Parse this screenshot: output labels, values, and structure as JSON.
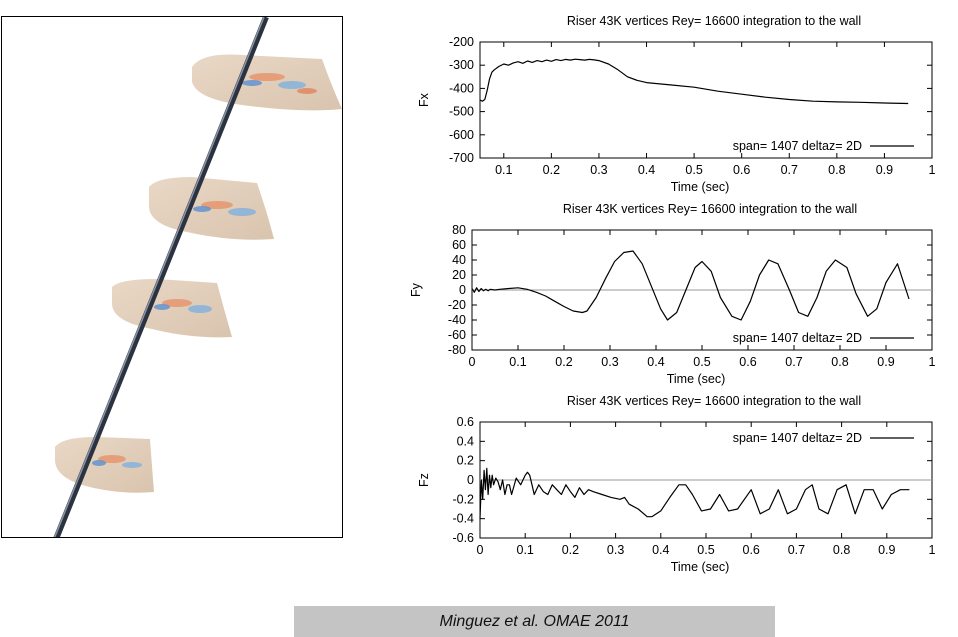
{
  "caption": "Minguez et al. OMAE 2011",
  "colors": {
    "curve": "#000000",
    "grid": "#999999",
    "caption_bg": "#c4c4c4"
  },
  "simulation_image": {
    "description_icon": "riser-vorticity-slices-image"
  },
  "chart_data": [
    {
      "type": "line",
      "title": "Riser 43K vertices Rey= 16600 integration to the wall",
      "xlabel": "Time (sec)",
      "ylabel": "Fx",
      "xlim": [
        0.05,
        1
      ],
      "ylim": [
        -700,
        -200
      ],
      "xticks": [
        "0.1",
        "0.2",
        "0.3",
        "0.4",
        "0.5",
        "0.6",
        "0.7",
        "0.8",
        "0.9",
        "1"
      ],
      "xtick_values": [
        0.1,
        0.2,
        0.3,
        0.4,
        0.5,
        0.6,
        0.7,
        0.8,
        0.9,
        1
      ],
      "yticks": [
        "-200",
        "-300",
        "-400",
        "-500",
        "-600",
        "-700"
      ],
      "ytick_values": [
        -200,
        -300,
        -400,
        -500,
        -600,
        -700
      ],
      "grid": true,
      "legend_position": "bottom-right",
      "series": [
        {
          "name": "span= 1407 deltaz= 2D",
          "x": [
            0.05,
            0.055,
            0.06,
            0.065,
            0.07,
            0.075,
            0.08,
            0.09,
            0.1,
            0.11,
            0.12,
            0.13,
            0.14,
            0.15,
            0.16,
            0.17,
            0.18,
            0.19,
            0.2,
            0.21,
            0.22,
            0.23,
            0.24,
            0.25,
            0.26,
            0.27,
            0.28,
            0.29,
            0.3,
            0.32,
            0.34,
            0.36,
            0.38,
            0.4,
            0.45,
            0.5,
            0.55,
            0.6,
            0.65,
            0.7,
            0.75,
            0.8,
            0.85,
            0.9,
            0.95
          ],
          "y": [
            -450,
            -455,
            -448,
            -410,
            -360,
            -330,
            -320,
            -305,
            -295,
            -300,
            -290,
            -285,
            -292,
            -282,
            -288,
            -280,
            -285,
            -278,
            -283,
            -276,
            -280,
            -275,
            -278,
            -274,
            -276,
            -278,
            -275,
            -277,
            -280,
            -295,
            -320,
            -350,
            -365,
            -375,
            -385,
            -395,
            -412,
            -425,
            -438,
            -448,
            -455,
            -458,
            -460,
            -463,
            -465
          ]
        }
      ]
    },
    {
      "type": "line",
      "title": "Riser 43K vertices Rey= 16600 integration to the wall",
      "xlabel": "Time (sec)",
      "ylabel": "Fy",
      "xlim": [
        0,
        1
      ],
      "ylim": [
        -80,
        80
      ],
      "xticks": [
        "0",
        "0.1",
        "0.2",
        "0.3",
        "0.4",
        "0.5",
        "0.6",
        "0.7",
        "0.8",
        "0.9",
        "1"
      ],
      "xtick_values": [
        0,
        0.1,
        0.2,
        0.3,
        0.4,
        0.5,
        0.6,
        0.7,
        0.8,
        0.9,
        1
      ],
      "yticks": [
        "80",
        "60",
        "40",
        "20",
        "0",
        "-20",
        "-40",
        "-60",
        "-80"
      ],
      "ytick_values": [
        80,
        60,
        40,
        20,
        0,
        -20,
        -40,
        -60,
        -80
      ],
      "grid": true,
      "zero_line": true,
      "legend_position": "bottom-right",
      "series": [
        {
          "name": "span= 1407 deltaz= 2D",
          "x": [
            0,
            0.005,
            0.01,
            0.015,
            0.02,
            0.025,
            0.03,
            0.035,
            0.04,
            0.05,
            0.06,
            0.08,
            0.1,
            0.12,
            0.14,
            0.16,
            0.18,
            0.2,
            0.22,
            0.24,
            0.25,
            0.27,
            0.29,
            0.31,
            0.33,
            0.35,
            0.37,
            0.39,
            0.41,
            0.425,
            0.445,
            0.465,
            0.485,
            0.5,
            0.52,
            0.54,
            0.565,
            0.585,
            0.605,
            0.625,
            0.645,
            0.665,
            0.69,
            0.71,
            0.73,
            0.75,
            0.77,
            0.79,
            0.815,
            0.835,
            0.86,
            0.88,
            0.9,
            0.925,
            0.95
          ],
          "y": [
            2,
            -3,
            3,
            -2,
            2,
            -1,
            1,
            -1,
            1,
            0,
            1,
            2,
            3,
            1,
            -3,
            -8,
            -15,
            -22,
            -28,
            -30,
            -28,
            -10,
            15,
            38,
            50,
            52,
            35,
            5,
            -25,
            -40,
            -30,
            0,
            30,
            38,
            25,
            -10,
            -35,
            -40,
            -15,
            20,
            40,
            35,
            0,
            -30,
            -35,
            -10,
            25,
            40,
            30,
            -5,
            -35,
            -25,
            10,
            35,
            -12
          ]
        }
      ]
    },
    {
      "type": "line",
      "title": "Riser 43K vertices Rey= 16600 integration to the wall",
      "xlabel": "Time (sec)",
      "ylabel": "Fz",
      "xlim": [
        0,
        1
      ],
      "ylim": [
        -0.6,
        0.6
      ],
      "xticks": [
        "0",
        "0.1",
        "0.2",
        "0.3",
        "0.4",
        "0.5",
        "0.6",
        "0.7",
        "0.8",
        "0.9",
        "1"
      ],
      "xtick_values": [
        0,
        0.1,
        0.2,
        0.3,
        0.4,
        0.5,
        0.6,
        0.7,
        0.8,
        0.9,
        1
      ],
      "yticks": [
        "0.6",
        "0.4",
        "0.2",
        "0",
        "-0.2",
        "-0.4",
        "-0.6"
      ],
      "ytick_values": [
        0.6,
        0.4,
        0.2,
        0,
        -0.2,
        -0.4,
        -0.6
      ],
      "grid": true,
      "zero_line": true,
      "legend_position": "top-right",
      "series": [
        {
          "name": "span= 1407 deltaz= 2D",
          "x": [
            0,
            0.003,
            0.006,
            0.009,
            0.012,
            0.015,
            0.018,
            0.021,
            0.024,
            0.027,
            0.03,
            0.035,
            0.04,
            0.045,
            0.05,
            0.055,
            0.06,
            0.065,
            0.07,
            0.08,
            0.09,
            0.1,
            0.105,
            0.11,
            0.115,
            0.12,
            0.13,
            0.14,
            0.15,
            0.16,
            0.17,
            0.18,
            0.19,
            0.2,
            0.21,
            0.22,
            0.23,
            0.24,
            0.25,
            0.27,
            0.29,
            0.31,
            0.32,
            0.33,
            0.35,
            0.37,
            0.38,
            0.4,
            0.42,
            0.44,
            0.455,
            0.47,
            0.49,
            0.51,
            0.53,
            0.55,
            0.57,
            0.6,
            0.62,
            0.64,
            0.66,
            0.68,
            0.7,
            0.72,
            0.735,
            0.75,
            0.77,
            0.79,
            0.81,
            0.83,
            0.85,
            0.87,
            0.89,
            0.91,
            0.93,
            0.95
          ],
          "y": [
            -0.4,
            0.0,
            -0.2,
            0.1,
            -0.1,
            0.12,
            -0.15,
            0.05,
            -0.08,
            0.05,
            -0.05,
            0.02,
            -0.02,
            -0.1,
            0.0,
            -0.15,
            -0.05,
            -0.05,
            -0.15,
            0.02,
            -0.05,
            0.05,
            0.08,
            0.05,
            -0.05,
            -0.15,
            -0.05,
            -0.12,
            -0.15,
            -0.05,
            -0.1,
            -0.15,
            -0.05,
            -0.12,
            -0.18,
            -0.08,
            -0.15,
            -0.1,
            -0.12,
            -0.15,
            -0.18,
            -0.2,
            -0.18,
            -0.25,
            -0.3,
            -0.38,
            -0.38,
            -0.32,
            -0.18,
            -0.05,
            -0.05,
            -0.15,
            -0.32,
            -0.3,
            -0.15,
            -0.32,
            -0.3,
            -0.1,
            -0.35,
            -0.3,
            -0.1,
            -0.35,
            -0.3,
            -0.1,
            -0.05,
            -0.3,
            -0.35,
            -0.1,
            -0.05,
            -0.35,
            -0.1,
            -0.1,
            -0.3,
            -0.15,
            -0.1,
            -0.1
          ]
        }
      ]
    }
  ]
}
